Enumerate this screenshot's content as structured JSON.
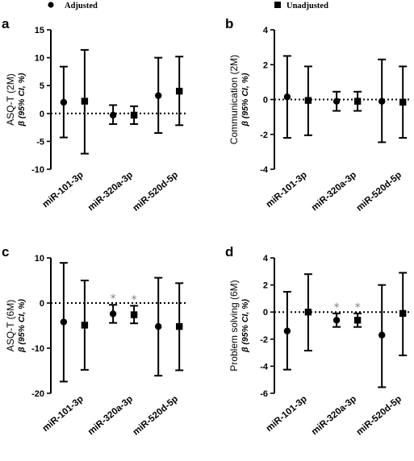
{
  "legend": {
    "adjusted": "Adjusted",
    "unadjusted": "Unadjusted"
  },
  "colors": {
    "marks": "#000000",
    "significance": "#808080"
  },
  "chart_data": [
    {
      "panel": "a",
      "type": "scatter",
      "ylabel": "ASQ-T (2M)",
      "ylabel2": "β (95% CI, %)",
      "categories": [
        "miR-101-3p",
        "miR-320a-3p",
        "miR-520d-5p"
      ],
      "ylim": [
        -10,
        15
      ],
      "yticks": [
        -10,
        -5,
        0,
        5,
        10,
        15
      ],
      "tick_labels": [
        "-10",
        "-5",
        "0",
        "5",
        "10",
        "15"
      ],
      "series": [
        {
          "name": "Adjusted",
          "marker": "circle",
          "values": [
            2.0,
            -0.3,
            3.2
          ],
          "lower": [
            -4.3,
            -1.9,
            -3.5
          ],
          "upper": [
            8.4,
            1.5,
            10.0
          ]
        },
        {
          "name": "Unadjusted",
          "marker": "square",
          "values": [
            2.2,
            -0.3,
            4.0
          ],
          "lower": [
            -7.2,
            -1.9,
            -2.1
          ],
          "upper": [
            11.4,
            1.3,
            10.2
          ]
        }
      ],
      "significant": [
        false,
        false,
        false
      ],
      "significance_mark": "*"
    },
    {
      "panel": "b",
      "type": "scatter",
      "ylabel": "Communication (2M)",
      "ylabel2": "β (95% CI, %)",
      "categories": [
        "miR-101-3p",
        "miR-320a-3p",
        "miR-520d-5p"
      ],
      "ylim": [
        -4,
        4
      ],
      "yticks": [
        -4,
        -2,
        0,
        2,
        4
      ],
      "tick_labels": [
        "-4",
        "-2",
        "0",
        "2",
        "4"
      ],
      "series": [
        {
          "name": "Adjusted",
          "marker": "circle",
          "values": [
            0.15,
            -0.1,
            -0.1
          ],
          "lower": [
            -2.2,
            -0.65,
            -2.45
          ],
          "upper": [
            2.5,
            0.45,
            2.3
          ]
        },
        {
          "name": "Unadjusted",
          "marker": "square",
          "values": [
            -0.05,
            -0.1,
            -0.15
          ],
          "lower": [
            -2.05,
            -0.65,
            -2.2
          ],
          "upper": [
            1.9,
            0.45,
            1.9
          ]
        }
      ],
      "significant": [
        false,
        false,
        false
      ],
      "significance_mark": "*"
    },
    {
      "panel": "c",
      "type": "scatter",
      "ylabel": "ASQ-T (6M)",
      "ylabel2": "β (95% CI, %)",
      "categories": [
        "miR-101-3p",
        "miR-320a-3p",
        "miR-520d-5p"
      ],
      "ylim": [
        -20,
        10
      ],
      "yticks": [
        -20,
        -10,
        0,
        10
      ],
      "tick_labels": [
        "-20",
        "-10",
        "0",
        "10"
      ],
      "series": [
        {
          "name": "Adjusted",
          "marker": "circle",
          "values": [
            -4.2,
            -2.4,
            -5.2
          ],
          "lower": [
            -17.4,
            -4.4,
            -16.1
          ],
          "upper": [
            8.9,
            -0.4,
            5.6
          ]
        },
        {
          "name": "Unadjusted",
          "marker": "square",
          "values": [
            -4.9,
            -2.6,
            -5.2
          ],
          "lower": [
            -14.8,
            -4.5,
            -14.9
          ],
          "upper": [
            5.0,
            -0.6,
            4.4
          ]
        }
      ],
      "significant": [
        false,
        true,
        false
      ],
      "significance_mark": "*"
    },
    {
      "panel": "d",
      "type": "scatter",
      "ylabel": "Problem solving (6M)",
      "ylabel2": "β (95% CI, %)",
      "categories": [
        "miR-101-3p",
        "miR-320a-3p",
        "miR-520d-5p"
      ],
      "ylim": [
        -6,
        4
      ],
      "yticks": [
        -6,
        -4,
        -2,
        0,
        2,
        4
      ],
      "tick_labels": [
        "-6",
        "-4",
        "-2",
        "0",
        "2",
        "4"
      ],
      "series": [
        {
          "name": "Adjusted",
          "marker": "circle",
          "values": [
            -1.4,
            -0.6,
            -1.7
          ],
          "lower": [
            -4.25,
            -1.1,
            -5.55
          ],
          "upper": [
            1.5,
            -0.1,
            2.0
          ]
        },
        {
          "name": "Unadjusted",
          "marker": "square",
          "values": [
            0.0,
            -0.6,
            -0.1
          ],
          "lower": [
            -2.85,
            -1.1,
            -3.2
          ],
          "upper": [
            2.8,
            -0.1,
            2.9
          ]
        }
      ],
      "significant": [
        false,
        true,
        false
      ],
      "significance_mark": "*"
    }
  ]
}
